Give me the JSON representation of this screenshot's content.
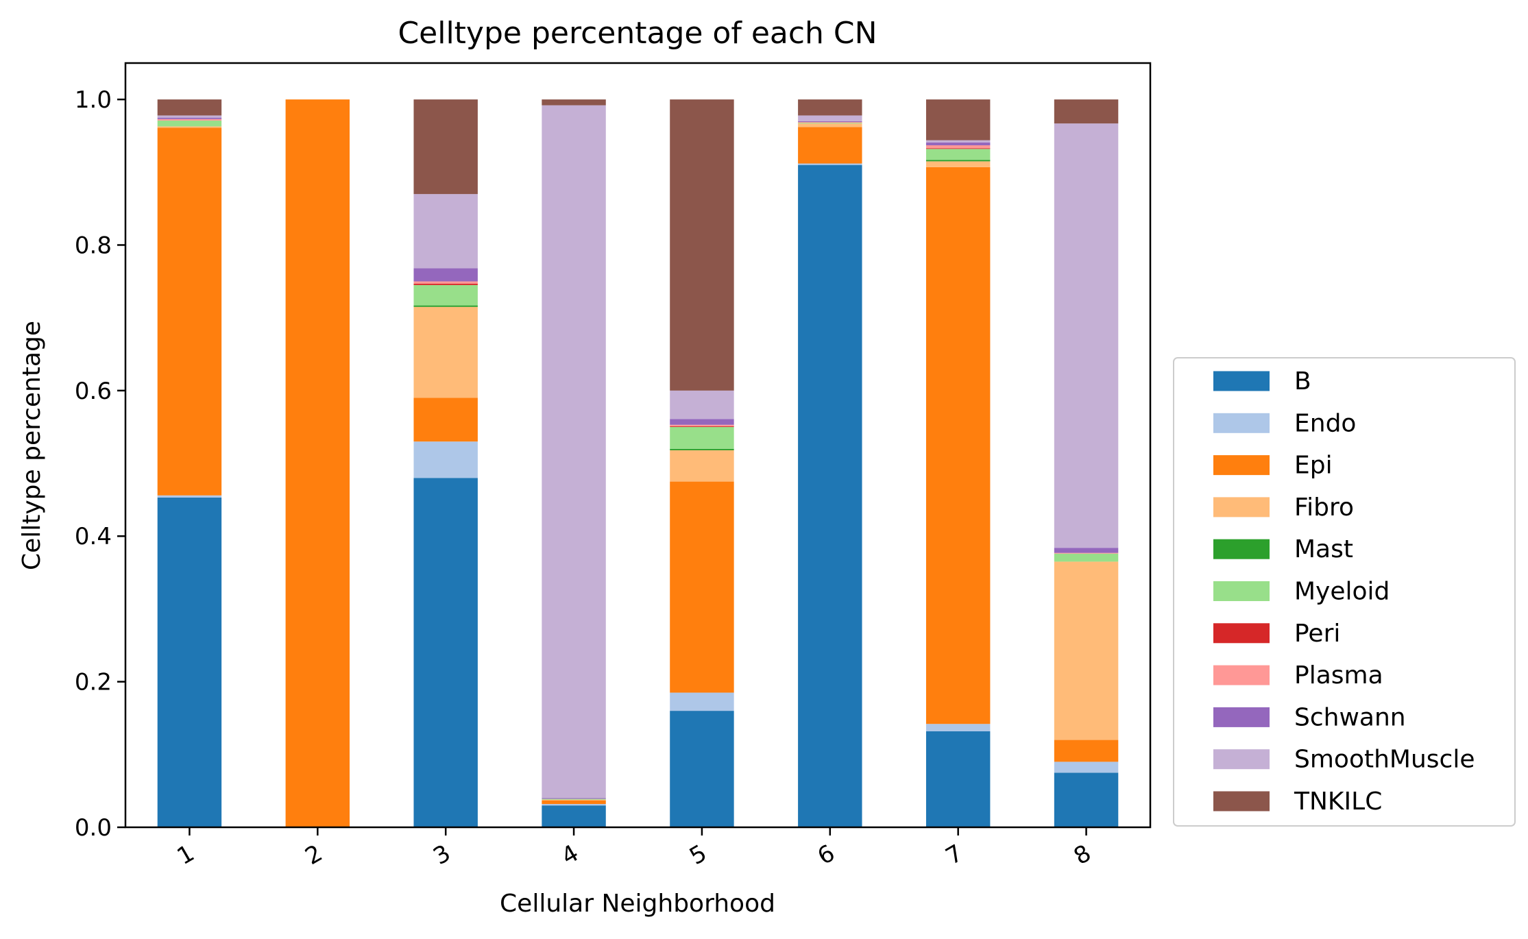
{
  "chart_data": {
    "type": "bar",
    "stacked": true,
    "title": "Celltype percentage of each CN",
    "xlabel": "Cellular Neighborhood",
    "ylabel": "Celltype percentage",
    "ylim": [
      0,
      1.05
    ],
    "yticks": [
      "0.0",
      "0.2",
      "0.4",
      "0.6",
      "0.8",
      "1.0"
    ],
    "categories": [
      "1",
      "2",
      "3",
      "4",
      "5",
      "6",
      "7",
      "8"
    ],
    "legend_position": "right",
    "grid": false,
    "series": [
      {
        "name": "B",
        "color": "#1f77b4",
        "values": [
          0.453,
          0.0,
          0.48,
          0.03,
          0.16,
          0.91,
          0.132,
          0.075
        ]
      },
      {
        "name": "Endo",
        "color": "#aec7e8",
        "values": [
          0.003,
          0.0,
          0.05,
          0.002,
          0.025,
          0.002,
          0.01,
          0.015
        ]
      },
      {
        "name": "Epi",
        "color": "#ff7f0e",
        "values": [
          0.505,
          1.0,
          0.06,
          0.005,
          0.29,
          0.05,
          0.765,
          0.03
        ]
      },
      {
        "name": "Fibro",
        "color": "#ffbb78",
        "values": [
          0.002,
          0.0,
          0.125,
          0.001,
          0.043,
          0.005,
          0.008,
          0.245
        ]
      },
      {
        "name": "Mast",
        "color": "#2ca02c",
        "values": [
          0.0,
          0.0,
          0.002,
          0.0,
          0.002,
          0.0,
          0.002,
          0.0
        ]
      },
      {
        "name": "Myeloid",
        "color": "#98df8a",
        "values": [
          0.008,
          0.0,
          0.028,
          0.001,
          0.03,
          0.001,
          0.015,
          0.011
        ]
      },
      {
        "name": "Peri",
        "color": "#d62728",
        "values": [
          0.0,
          0.0,
          0.002,
          0.0,
          0.001,
          0.0,
          0.001,
          0.0
        ]
      },
      {
        "name": "Plasma",
        "color": "#ff9896",
        "values": [
          0.002,
          0.0,
          0.003,
          0.0,
          0.002,
          0.001,
          0.004,
          0.001
        ]
      },
      {
        "name": "Schwann",
        "color": "#9467bd",
        "values": [
          0.002,
          0.0,
          0.018,
          0.001,
          0.008,
          0.001,
          0.004,
          0.007
        ]
      },
      {
        "name": "SmoothMuscle",
        "color": "#c5b0d5",
        "values": [
          0.003,
          0.0,
          0.102,
          0.952,
          0.039,
          0.008,
          0.003,
          0.583
        ]
      },
      {
        "name": "TNKILC",
        "color": "#8c564b",
        "values": [
          0.022,
          0.0,
          0.13,
          0.008,
          0.4,
          0.022,
          0.056,
          0.033
        ]
      }
    ]
  }
}
